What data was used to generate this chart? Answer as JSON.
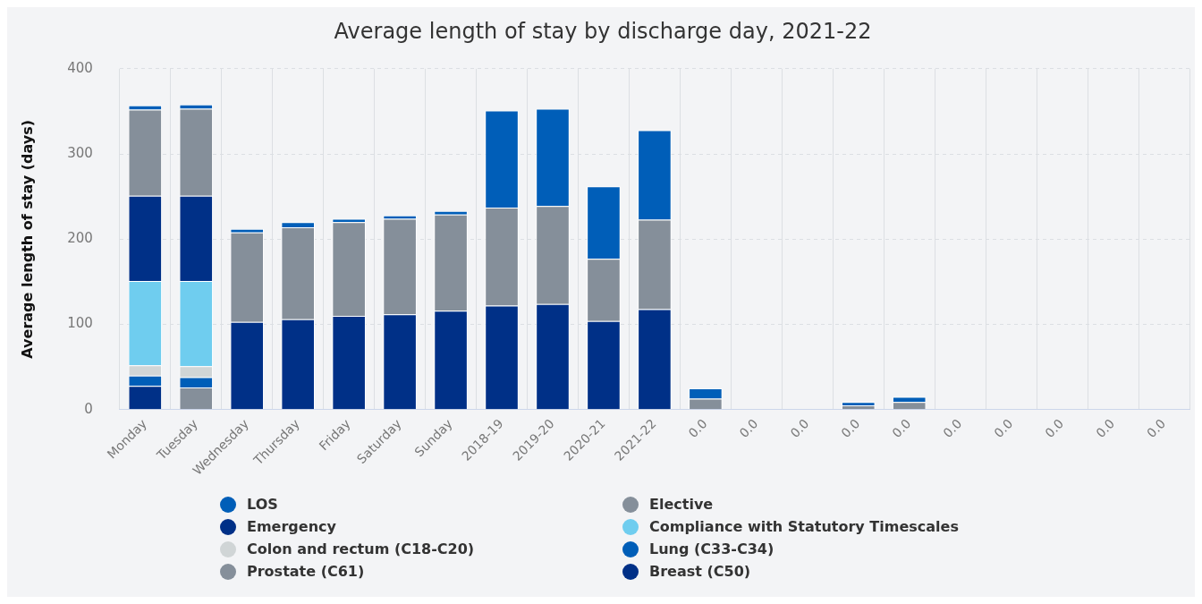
{
  "chart_data": {
    "type": "bar",
    "title": "Average length of stay by discharge day, 2021-22",
    "ylabel": "Average length of stay (days)",
    "categories": [
      "Monday",
      "Tuesday",
      "Wednesday",
      "Thursday",
      "Friday",
      "Saturday",
      "Sunday",
      "2018-19",
      "2019-20",
      "2020-21",
      "2021-22",
      "0.0",
      "0.0",
      "0.0",
      "0.0",
      "0.0",
      "0.0",
      "0.0",
      "0.0",
      "0.0",
      "0.0"
    ],
    "stacked": true,
    "ylim": [
      0,
      400
    ],
    "yticks": [
      0,
      100,
      200,
      300,
      400
    ],
    "grid": true,
    "legend": "bottom",
    "series": [
      {
        "name": "Breast (C50)",
        "color": "#003087",
        "values": [
          28,
          null,
          null,
          null,
          null,
          null,
          null,
          null,
          null,
          null,
          null,
          null,
          null,
          null,
          null,
          null,
          null,
          null,
          null,
          null,
          null
        ]
      },
      {
        "name": "Prostate (C61)",
        "color": "#858f9a",
        "values": [
          null,
          26,
          null,
          null,
          null,
          null,
          null,
          null,
          null,
          null,
          null,
          null,
          null,
          null,
          null,
          null,
          null,
          null,
          null,
          null,
          null
        ]
      },
      {
        "name": "Lung (C33-C34)",
        "color": "#005eb8",
        "values": [
          12,
          12,
          null,
          null,
          null,
          null,
          null,
          null,
          null,
          null,
          null,
          null,
          null,
          null,
          null,
          null,
          null,
          null,
          null,
          null,
          null
        ]
      },
      {
        "name": "Colon and rectum (C18-C20)",
        "color": "#d0d5d6",
        "values": [
          12,
          13,
          null,
          null,
          null,
          null,
          null,
          null,
          null,
          null,
          null,
          null,
          null,
          null,
          null,
          null,
          null,
          null,
          null,
          null,
          null
        ]
      },
      {
        "name": "Compliance with Statutory Timescales",
        "color": "#6fcdef",
        "values": [
          99,
          100,
          null,
          null,
          null,
          null,
          null,
          null,
          null,
          null,
          null,
          null,
          null,
          null,
          null,
          null,
          null,
          null,
          null,
          null,
          null
        ]
      },
      {
        "name": "Emergency",
        "color": "#003087",
        "values": [
          100,
          100,
          103,
          106,
          110,
          112,
          116,
          122,
          124,
          104,
          118,
          null,
          null,
          null,
          null,
          null,
          null,
          null,
          null,
          null,
          null
        ]
      },
      {
        "name": "Elective",
        "color": "#858f9a",
        "values": [
          101,
          102,
          105,
          108,
          110,
          112,
          113,
          115,
          115,
          73,
          105,
          13,
          null,
          null,
          5,
          9,
          null,
          null,
          null,
          null,
          null
        ]
      },
      {
        "name": "LOS",
        "color": "#005eb8",
        "values": [
          5,
          5,
          4,
          6,
          4,
          4,
          4,
          114,
          114,
          85,
          105,
          12,
          null,
          null,
          4,
          6,
          null,
          null,
          null,
          null,
          null
        ]
      }
    ]
  }
}
